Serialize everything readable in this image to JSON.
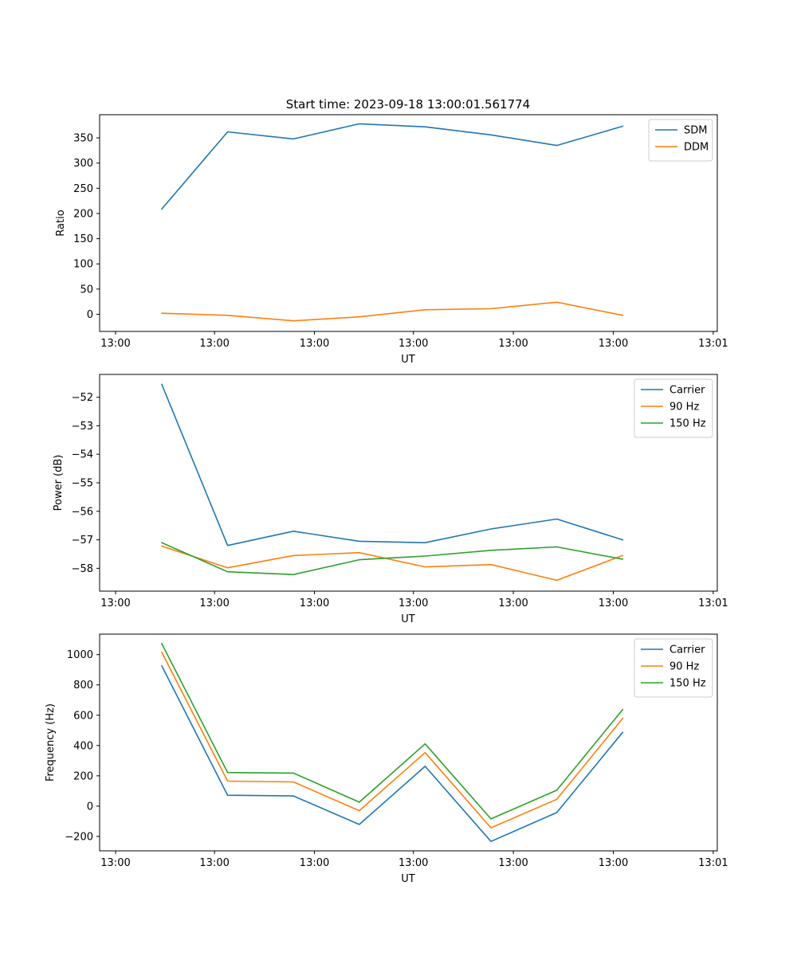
{
  "figure": {
    "title": "Start time: 2023-09-18 13:00:01.561774"
  },
  "colors": {
    "blue": "#1f77b4",
    "orange": "#ff7f0e",
    "green": "#2ca02c"
  },
  "chart_data": [
    {
      "type": "line",
      "title": "Start time: 2023-09-18 13:00:01.561774",
      "xlabel": "UT",
      "ylabel": "Ratio",
      "x": [
        0,
        1,
        2,
        3,
        4,
        5,
        6,
        7
      ],
      "xlim": [
        -0.47,
        5.5
      ],
      "x_ticks": [
        {
          "pos": -0.47,
          "label": "13:00"
        },
        {
          "pos": 0.52,
          "label": "13:00"
        },
        {
          "pos": 1.52,
          "label": "13:00"
        },
        {
          "pos": 2.51,
          "label": "13:00"
        },
        {
          "pos": 3.51,
          "label": "13:00"
        },
        {
          "pos": 4.51,
          "label": "13:00"
        },
        {
          "pos": 5.51,
          "label": "13:01"
        }
      ],
      "ylim": [
        -34,
        396
      ],
      "y_ticks": [
        0,
        50,
        100,
        150,
        200,
        250,
        300,
        350
      ],
      "legend": "top-right",
      "series": [
        {
          "name": "SDM",
          "color": "#1f77b4",
          "values": [
            209,
            362,
            348,
            378,
            372,
            356,
            335,
            373
          ]
        },
        {
          "name": "DDM",
          "color": "#ff7f0e",
          "values": [
            2,
            -2,
            -13,
            -5,
            9,
            11,
            24,
            -2
          ]
        }
      ]
    },
    {
      "type": "line",
      "title": "",
      "xlabel": "UT",
      "ylabel": "Power (dB)",
      "x": [
        0,
        1,
        2,
        3,
        4,
        5,
        6,
        7
      ],
      "xlim": [
        -0.47,
        5.5
      ],
      "x_ticks": [
        {
          "pos": -0.47,
          "label": "13:00"
        },
        {
          "pos": 0.52,
          "label": "13:00"
        },
        {
          "pos": 1.52,
          "label": "13:00"
        },
        {
          "pos": 2.51,
          "label": "13:00"
        },
        {
          "pos": 3.51,
          "label": "13:00"
        },
        {
          "pos": 4.51,
          "label": "13:00"
        },
        {
          "pos": 5.51,
          "label": "13:01"
        }
      ],
      "ylim": [
        -58.8,
        -51.2
      ],
      "y_ticks": [
        -58,
        -57,
        -56,
        -55,
        -54,
        -53,
        -52
      ],
      "y_tick_labels": [
        "−58",
        "−57",
        "−56",
        "−55",
        "−54",
        "−53",
        "−52"
      ],
      "legend": "top-right",
      "series": [
        {
          "name": "Carrier",
          "color": "#1f77b4",
          "values": [
            -51.55,
            -57.2,
            -56.7,
            -57.05,
            -57.1,
            -56.62,
            -56.27,
            -57.0
          ]
        },
        {
          "name": "90 Hz",
          "color": "#ff7f0e",
          "values": [
            -57.22,
            -57.98,
            -57.55,
            -57.45,
            -57.95,
            -57.87,
            -58.42,
            -57.55
          ]
        },
        {
          "name": "150 Hz",
          "color": "#2ca02c",
          "values": [
            -57.1,
            -58.12,
            -58.22,
            -57.7,
            -57.57,
            -57.37,
            -57.25,
            -57.68
          ]
        }
      ]
    },
    {
      "type": "line",
      "title": "",
      "xlabel": "UT",
      "ylabel": "Frequency (Hz)",
      "x": [
        0,
        1,
        2,
        3,
        4,
        5,
        6,
        7
      ],
      "xlim": [
        -0.47,
        5.5
      ],
      "x_ticks": [
        {
          "pos": -0.47,
          "label": "13:00"
        },
        {
          "pos": 0.52,
          "label": "13:00"
        },
        {
          "pos": 1.52,
          "label": "13:00"
        },
        {
          "pos": 2.51,
          "label": "13:00"
        },
        {
          "pos": 3.51,
          "label": "13:00"
        },
        {
          "pos": 4.51,
          "label": "13:00"
        },
        {
          "pos": 5.51,
          "label": "13:01"
        }
      ],
      "ylim": [
        -295,
        1135
      ],
      "y_ticks": [
        -200,
        0,
        200,
        400,
        600,
        800,
        1000
      ],
      "y_tick_labels": [
        "−200",
        "0",
        "200",
        "400",
        "600",
        "800",
        "1000"
      ],
      "legend": "top-right",
      "series": [
        {
          "name": "Carrier",
          "color": "#1f77b4",
          "values": [
            925,
            72,
            67,
            -121,
            263,
            -233,
            -42,
            487
          ]
        },
        {
          "name": "90 Hz",
          "color": "#ff7f0e",
          "values": [
            1015,
            165,
            160,
            -30,
            353,
            -143,
            45,
            578
          ]
        },
        {
          "name": "150 Hz",
          "color": "#2ca02c",
          "values": [
            1072,
            222,
            218,
            26,
            411,
            -84,
            105,
            637
          ]
        }
      ]
    }
  ]
}
